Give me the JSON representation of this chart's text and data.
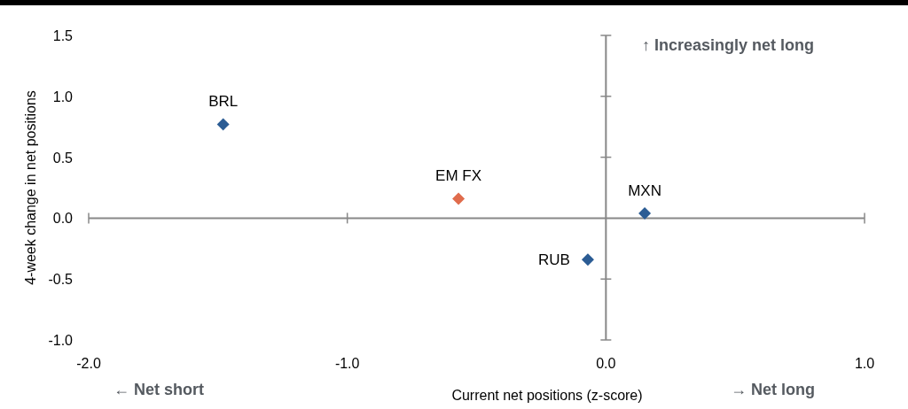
{
  "chart_data": {
    "type": "scatter",
    "xlabel": "Current net positions (z-score)",
    "ylabel": "4-week change in net positions",
    "xlim": [
      -2.0,
      1.0
    ],
    "xticks": [
      {
        "value": -2,
        "label": "-2.0"
      },
      {
        "value": -1,
        "label": "-1.0"
      },
      {
        "value": 0,
        "label": "0.0"
      },
      {
        "value": 1,
        "label": "1.0"
      }
    ],
    "ylim": [
      -1.0,
      1.5
    ],
    "yticks": [
      {
        "value": -1,
        "label": "-1.0"
      },
      {
        "value": -0.5,
        "label": "-0.5"
      },
      {
        "value": 0,
        "label": "0.0"
      },
      {
        "value": 0.5,
        "label": "0.5"
      },
      {
        "value": 1,
        "label": "1.0"
      },
      {
        "value": 1.5,
        "label": "1.5"
      }
    ],
    "marker": "diamond",
    "series": [
      {
        "name": "BRL",
        "color": "#2b5c94",
        "x": [
          -1.48
        ],
        "values": [
          0.77
        ]
      },
      {
        "name": "EM FX",
        "color": "#e06c4c",
        "x": [
          -0.57
        ],
        "values": [
          0.16
        ]
      },
      {
        "name": "RUB",
        "color": "#2b5c94",
        "x": [
          -0.07
        ],
        "values": [
          -0.34
        ]
      },
      {
        "name": "MXN",
        "color": "#2b5c94",
        "x": [
          0.15
        ],
        "values": [
          0.04
        ]
      }
    ],
    "annotations": [
      "↑ Increasingly net long",
      "← Net short",
      "→ Net long"
    ]
  }
}
